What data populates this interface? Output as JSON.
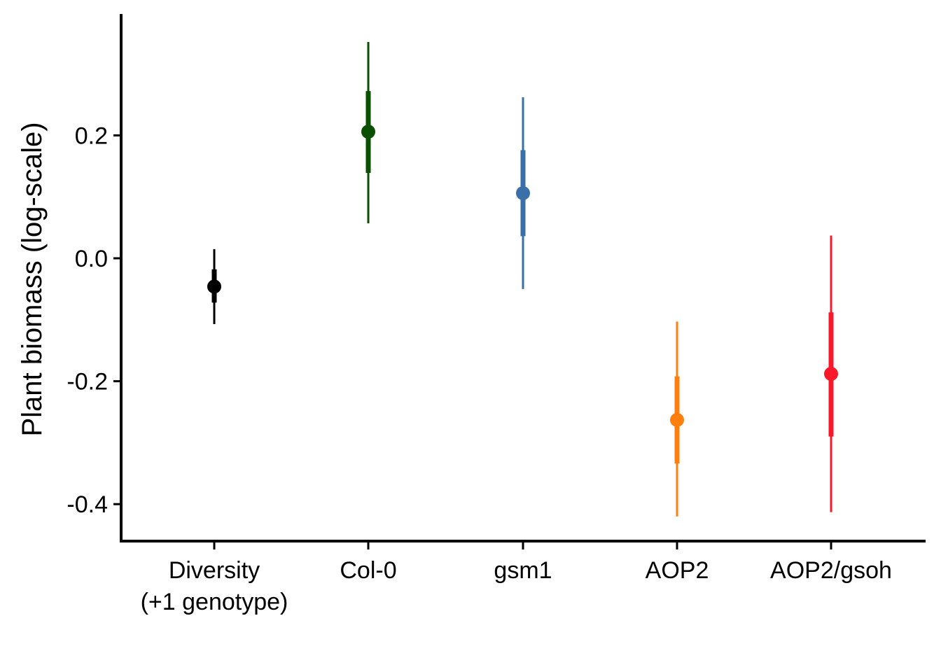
{
  "chart_data": {
    "type": "scatter",
    "title": "",
    "xlabel": "",
    "ylabel": "Plant biomass (log-scale)",
    "ylim": [
      -0.46,
      0.4
    ],
    "y_ticks": [
      "0.2",
      "0.0",
      "-0.2",
      "-0.4"
    ],
    "y_tick_values": [
      0.2,
      0.0,
      -0.2,
      -0.4
    ],
    "grid": false,
    "legend": "none",
    "categories": [
      {
        "label_lines": [
          "Diversity",
          "(+1 genotype)"
        ],
        "estimate": -0.046,
        "inner": [
          -0.072,
          -0.018
        ],
        "outer": [
          -0.107,
          0.015
        ],
        "color": "#000000"
      },
      {
        "label_lines": [
          "Col-0"
        ],
        "estimate": 0.206,
        "inner": [
          0.139,
          0.272
        ],
        "outer": [
          0.057,
          0.352
        ],
        "color": "#0b4f00"
      },
      {
        "label_lines": [
          "gsm1"
        ],
        "estimate": 0.106,
        "inner": [
          0.036,
          0.176
        ],
        "outer": [
          -0.05,
          0.262
        ],
        "color": "#3a6fa8"
      },
      {
        "label_lines": [
          "AOP2"
        ],
        "estimate": -0.263,
        "inner": [
          -0.334,
          -0.192
        ],
        "outer": [
          -0.42,
          -0.103
        ],
        "color": "#ff7f0e"
      },
      {
        "label_lines": [
          "AOP2/gsoh"
        ],
        "estimate": -0.188,
        "inner": [
          -0.29,
          -0.088
        ],
        "outer": [
          -0.413,
          0.037
        ],
        "color": "#f8182a"
      }
    ]
  }
}
